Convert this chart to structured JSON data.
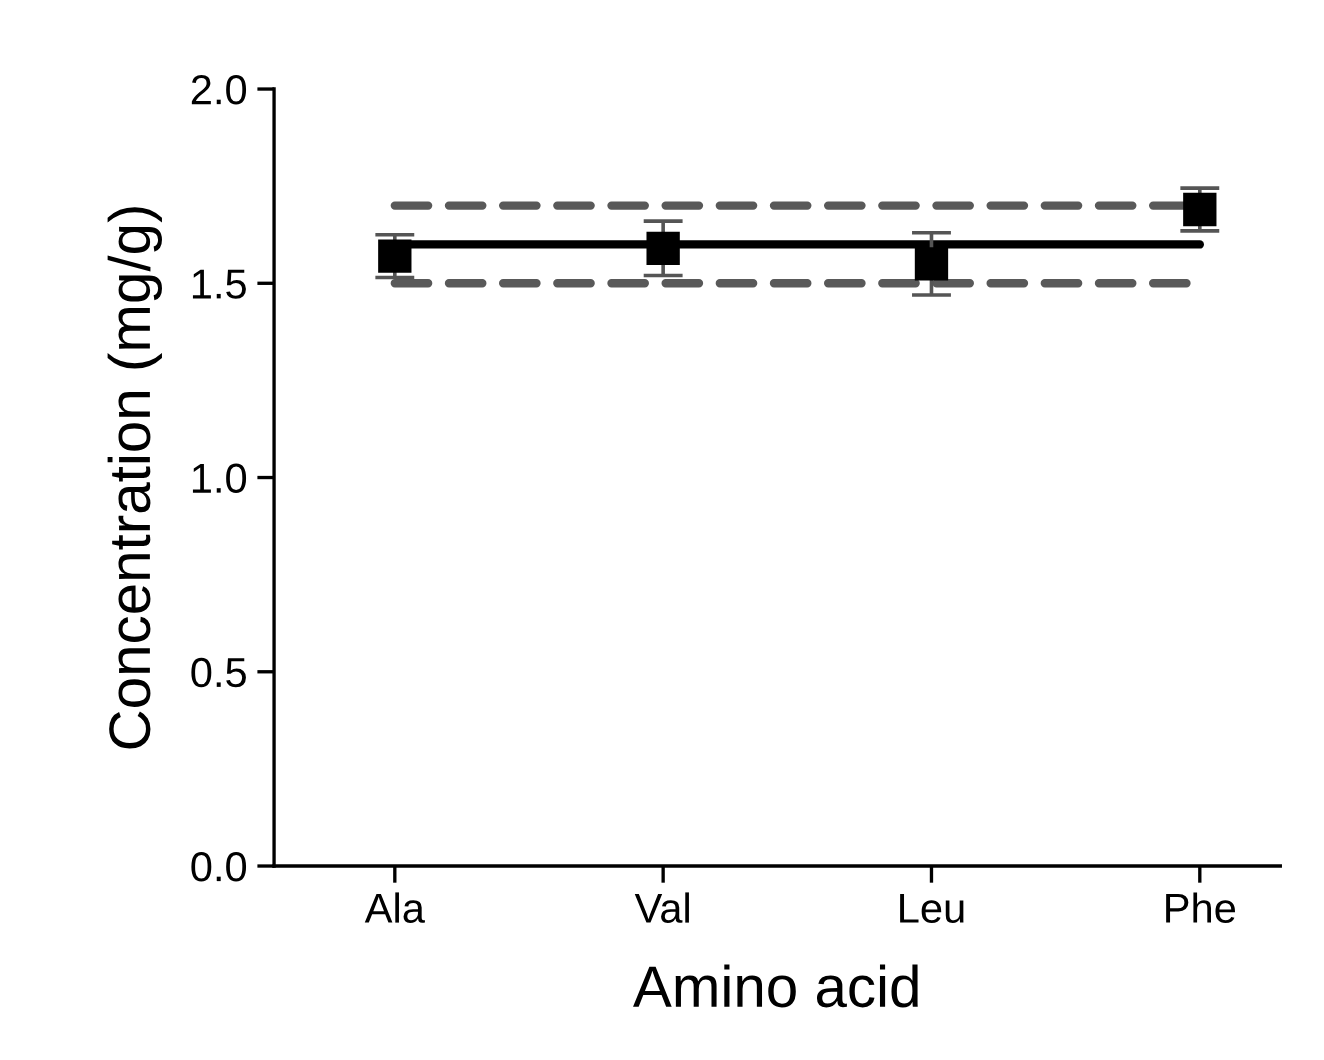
{
  "chart_data": {
    "type": "scatter",
    "xlabel": "Amino acid",
    "ylabel": "Concentration (mg/g)",
    "categories": [
      "Ala",
      "Val",
      "Leu",
      "Phe"
    ],
    "series": [
      {
        "color": "#000000",
        "values": [
          1.57,
          1.59,
          1.55,
          1.69
        ],
        "errors": [
          0.055,
          0.07,
          0.08,
          0.055
        ]
      }
    ],
    "ref_lines": [
      {
        "axis": "y",
        "value": 1.6,
        "color": "#000000",
        "line_style": "solid"
      },
      {
        "axis": "y",
        "value": 1.7,
        "color": "#595959",
        "line_style": "dashed"
      },
      {
        "axis": "y",
        "value": 1.5,
        "color": "#595959",
        "line_style": "dashed"
      }
    ],
    "ylim": [
      0,
      2
    ],
    "yticks": [
      {
        "value": 0,
        "label": "0.0"
      },
      {
        "value": 0.5,
        "label": "0.5"
      },
      {
        "value": 1,
        "label": "1.0"
      },
      {
        "value": 1.5,
        "label": "1.5"
      },
      {
        "value": 2,
        "label": "2.0"
      }
    ],
    "marker": "square",
    "grid": false,
    "legend": false
  }
}
